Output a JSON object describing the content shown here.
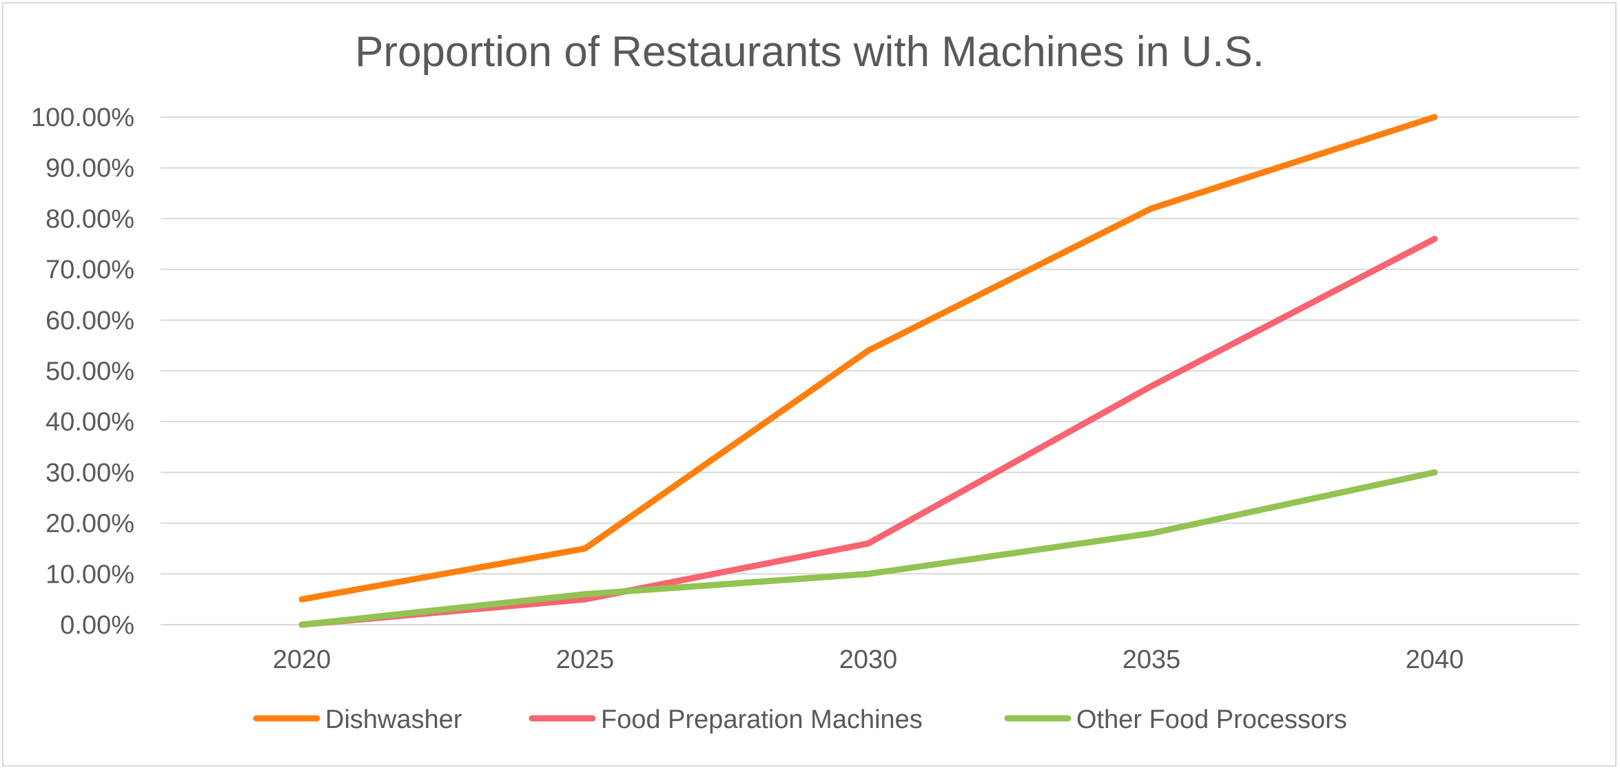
{
  "chart_data": {
    "type": "line",
    "title": "Proportion of Restaurants with Machines in U.S.",
    "xlabel": "",
    "ylabel": "",
    "x": [
      "2020",
      "2025",
      "2030",
      "2035",
      "2040"
    ],
    "ylim": [
      0,
      1
    ],
    "y_ticks": [
      "0.00%",
      "10.00%",
      "20.00%",
      "30.00%",
      "40.00%",
      "50.00%",
      "60.00%",
      "70.00%",
      "80.00%",
      "90.00%",
      "100.00%"
    ],
    "grid": true,
    "legend_position": "bottom",
    "series": [
      {
        "name": "Dishwasher",
        "color": "#FF7F0E",
        "values": [
          0.05,
          0.15,
          0.54,
          0.82,
          1.0
        ]
      },
      {
        "name": "Food Preparation Machines",
        "color": "#F8646F",
        "values": [
          0.0,
          0.05,
          0.16,
          0.47,
          0.76
        ]
      },
      {
        "name": "Other Food Processors",
        "color": "#92C353",
        "values": [
          0.0,
          0.06,
          0.1,
          0.18,
          0.3
        ]
      }
    ]
  }
}
